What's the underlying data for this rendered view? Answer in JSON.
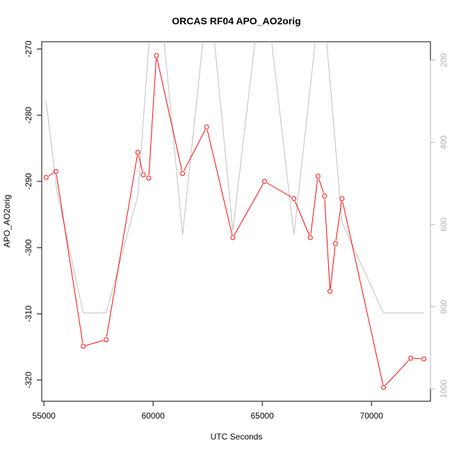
{
  "chart_data": {
    "type": "line",
    "title": "ORCAS RF04 APO_AO2orig",
    "xlabel": "UTC Seconds",
    "ylabel": "APO_AO2orig",
    "xlim": [
      54900,
      72700
    ],
    "ylim": [
      -323.2,
      -268.9
    ],
    "y2lim": [
      1030,
      155
    ],
    "x_ticks": [
      55000,
      60000,
      65000,
      70000
    ],
    "y_ticks": [
      -320,
      -310,
      -300,
      -290,
      -280,
      -270
    ],
    "y2_ticks": [
      200,
      400,
      600,
      800,
      1000
    ],
    "colors": {
      "primary": "#ff0000",
      "secondary": "#bebebe"
    },
    "series": [
      {
        "axis": "left",
        "style": "line+points",
        "x": [
          55100,
          55550,
          56800,
          57850,
          59300,
          59550,
          59800,
          60150,
          61350,
          62450,
          63650,
          65100,
          66450,
          67200,
          67550,
          67850,
          68100,
          68350,
          68650,
          70550,
          71800,
          72400
        ],
        "y": [
          -289.4,
          -288.5,
          -314.9,
          -313.9,
          -285.6,
          -289.0,
          -289.5,
          -271.0,
          -288.8,
          -281.8,
          -298.5,
          -290.0,
          -292.6,
          -298.5,
          -289.2,
          -292.2,
          -306.6,
          -299.4,
          -292.6,
          -321.1,
          -316.7,
          -316.8
        ]
      },
      {
        "axis": "right",
        "style": "line",
        "x": [
          55100,
          55600,
          56800,
          57850,
          59300,
          59900,
          60400,
          61350,
          62400,
          62700,
          63650,
          64800,
          65300,
          66450,
          67550,
          67850,
          68650,
          70550,
          72400
        ],
        "y": [
          300,
          520,
          815,
          815,
          530,
          95,
          95,
          625,
          95,
          95,
          615,
          95,
          95,
          625,
          95,
          95,
          595,
          815,
          815
        ]
      }
    ]
  }
}
